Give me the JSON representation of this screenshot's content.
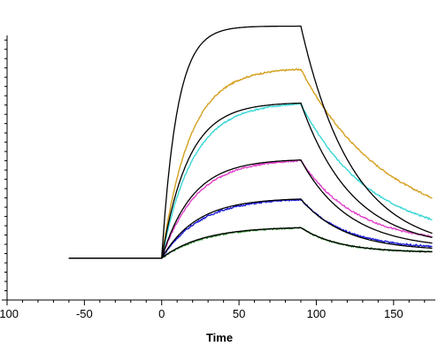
{
  "chart_data": {
    "type": "line",
    "title": "",
    "xlabel": "Time",
    "ylabel": "",
    "xlim": [
      -100,
      177
    ],
    "ylim": [
      -45,
      240
    ],
    "grid": false,
    "legend": false,
    "x_ticks": [
      -100,
      -50,
      0,
      50,
      100,
      150
    ],
    "x_tick_labels": [
      "-100",
      "-50",
      "0",
      "50",
      "100",
      "150"
    ],
    "y_ticks": [
      -45,
      0,
      50,
      100,
      150,
      200,
      240
    ],
    "y_tick_labels": [],
    "y_minor_step": 10,
    "baseline_start": -60,
    "association_end": 90,
    "x_end": 175,
    "series": [
      {
        "color": "#d4a020",
        "plateau": 205,
        "assoc_rate": 0.055,
        "dissoc_rate": 0.018,
        "dissoc_floor": 27
      },
      {
        "color": "#3ad6d6",
        "plateau": 168,
        "assoc_rate": 0.05,
        "dissoc_rate": 0.022,
        "dissoc_floor": 19
      },
      {
        "color": "#e040c8",
        "plateau": 107,
        "assoc_rate": 0.045,
        "dissoc_rate": 0.028,
        "dissoc_floor": 15
      },
      {
        "color": "#1a1ad8",
        "plateau": 65,
        "assoc_rate": 0.04,
        "dissoc_rate": 0.035,
        "dissoc_floor": 10
      },
      {
        "color": "#2e8b2e",
        "plateau": 34,
        "assoc_rate": 0.036,
        "dissoc_rate": 0.04,
        "dissoc_floor": 6
      }
    ],
    "fits": [
      {
        "color": "#000000",
        "plateau": 250,
        "assoc_rate": 0.1,
        "dissoc_rate": 0.03,
        "dissoc_floor": 8
      },
      {
        "color": "#000000",
        "plateau": 168,
        "assoc_rate": 0.058,
        "dissoc_rate": 0.03,
        "dissoc_floor": 10
      },
      {
        "color": "#000000",
        "plateau": 107,
        "assoc_rate": 0.05,
        "dissoc_rate": 0.032,
        "dissoc_floor": 10
      },
      {
        "color": "#000000",
        "plateau": 65,
        "assoc_rate": 0.044,
        "dissoc_rate": 0.035,
        "dissoc_floor": 8
      },
      {
        "color": "#000000",
        "plateau": 34,
        "assoc_rate": 0.038,
        "dissoc_rate": 0.04,
        "dissoc_floor": 6
      }
    ]
  }
}
